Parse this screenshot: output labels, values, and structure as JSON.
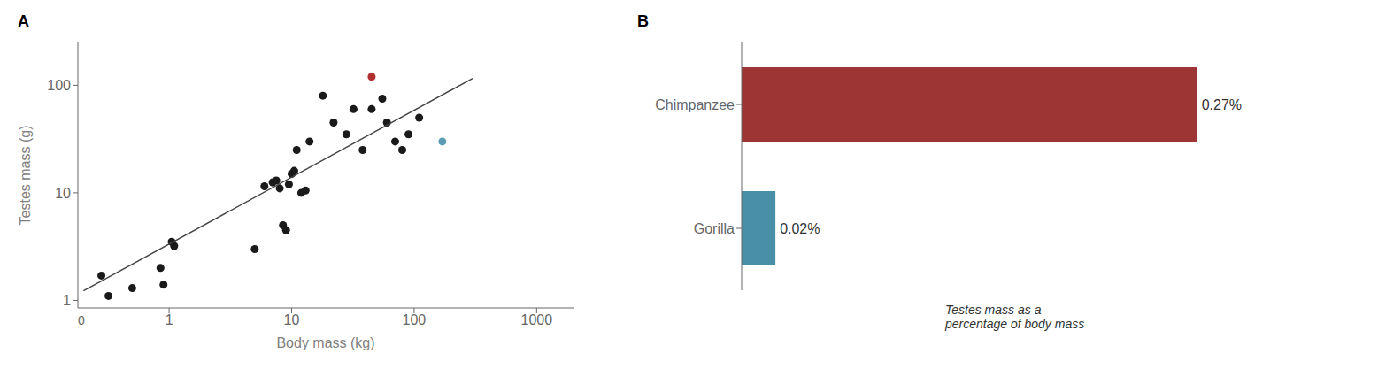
{
  "chart_data": [
    {
      "type": "scatter",
      "title": "A",
      "xlabel": "Body mass (kg)",
      "ylabel": "Testes mass (g)",
      "annotation": "0",
      "log": true,
      "xlim": [
        0.18,
        2000
      ],
      "ylim": [
        0.85,
        250
      ],
      "xticks": [
        1,
        10,
        100,
        1000
      ],
      "yticks": [
        1,
        10,
        100
      ],
      "series": [
        {
          "color": "#1a1a1a",
          "x": [
            0.28,
            0.32,
            0.5,
            0.85,
            0.9,
            1.05,
            1.1,
            5.0,
            6.0,
            7.0,
            7.5,
            8.0,
            8.5,
            9.0,
            9.5,
            10.0,
            10.5,
            11.0,
            12.0,
            13.0,
            14.0,
            18.0,
            22.0,
            28.0,
            32.0,
            38.0,
            45.0,
            55.0,
            60.0,
            70.0,
            80.0,
            90.0,
            110.0
          ],
          "values": [
            1.7,
            1.1,
            1.3,
            2.0,
            1.4,
            3.5,
            3.2,
            3.0,
            11.5,
            12.5,
            13.0,
            11.0,
            5.0,
            4.5,
            12.0,
            15.0,
            16.0,
            25.0,
            10.0,
            10.5,
            30.0,
            80.0,
            45.0,
            35.0,
            60.0,
            25.0,
            60.0,
            75.0,
            45.0,
            30.0,
            25.0,
            35.0,
            50.0
          ]
        },
        {
          "color": "#b03030",
          "x": [
            45.0
          ],
          "values": [
            120.0
          ]
        },
        {
          "color": "#5a9db5",
          "x": [
            170.0
          ],
          "values": [
            30.0
          ]
        },
        {
          "type": "line",
          "color": "#444444",
          "x": [
            0.2,
            300.0
          ],
          "values": [
            1.2252,
            115.83
          ]
        }
      ]
    },
    {
      "type": "bar",
      "title": "B",
      "orientation": "horizontal",
      "categories": [
        "Chimpanzee",
        "Gorilla"
      ],
      "values": [
        0.27,
        0.02
      ],
      "value_labels": [
        "0.27%",
        "0.02%"
      ],
      "colors": [
        "#9e3535",
        "#4a8fa8"
      ],
      "data_labels": true,
      "tick_labels": "y",
      "xlim": [
        0,
        0.32
      ],
      "annotation": "Testes mass as a\npercentage of body mass"
    }
  ]
}
